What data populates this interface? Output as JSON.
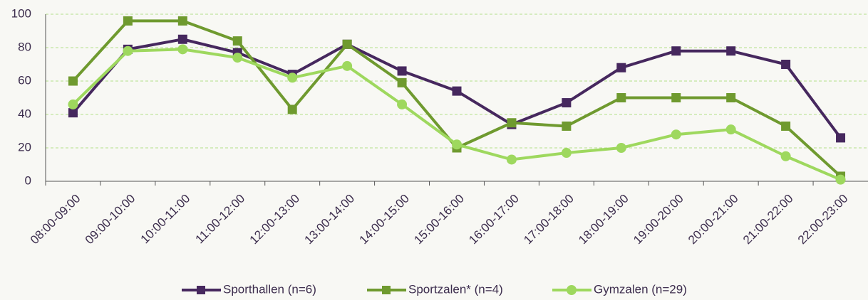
{
  "chart_data": {
    "type": "line",
    "categories": [
      "08:00-09:00",
      "09:00-10:00",
      "10:00-11:00",
      "11:00-12:00",
      "12:00-13:00",
      "13:00-14:00",
      "14:00-15:00",
      "15:00-16:00",
      "16:00-17:00",
      "17:00-18:00",
      "18:00-19:00",
      "19:00-20:00",
      "20:00-21:00",
      "21:00-22:00",
      "22:00-23:00"
    ],
    "series": [
      {
        "name": "Sporthallen (n=6)",
        "color": "#46285e",
        "marker": "square",
        "values": [
          41,
          79,
          85,
          77,
          64,
          82,
          66,
          54,
          34,
          47,
          68,
          78,
          78,
          70,
          26
        ]
      },
      {
        "name": "Sportzalen* (n=4)",
        "color": "#6f9a2f",
        "marker": "square",
        "values": [
          60,
          96,
          96,
          84,
          43,
          82,
          59,
          20,
          35,
          33,
          50,
          50,
          50,
          33,
          3
        ]
      },
      {
        "name": "Gymzalen (n=29)",
        "color": "#9ed85e",
        "marker": "circle",
        "values": [
          46,
          78,
          79,
          74,
          62,
          69,
          46,
          22,
          13,
          17,
          20,
          28,
          31,
          15,
          1
        ]
      }
    ],
    "ylim": [
      0,
      100
    ],
    "yticks": [
      0,
      20,
      40,
      60,
      80,
      100
    ],
    "grid": true,
    "legend": "bottom"
  }
}
